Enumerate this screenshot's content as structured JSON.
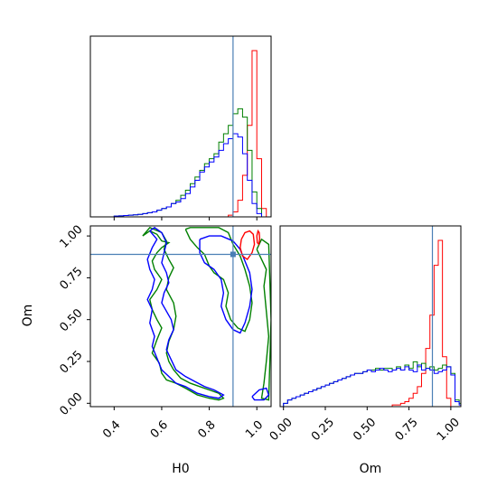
{
  "chart_data": {
    "type": "corner",
    "parameters": [
      "H0",
      "Om"
    ],
    "truths": {
      "H0": 0.9,
      "Om": 0.89
    },
    "truth_color": "#4a7fb5",
    "axes": {
      "H0": {
        "label": "H0",
        "range": [
          0.3,
          1.06
        ],
        "ticks": [
          0.4,
          0.6,
          0.8,
          1.0
        ],
        "tick_labels": [
          "0.4",
          "0.6",
          "0.8",
          "1.0"
        ]
      },
      "Om": {
        "label": "Om",
        "range": [
          -0.02,
          1.06
        ],
        "ticks": [
          0.0,
          0.25,
          0.5,
          0.75,
          1.0
        ],
        "tick_labels": [
          "0.00",
          "0.25",
          "0.50",
          "0.75",
          "1.00"
        ]
      }
    },
    "series": [
      {
        "color": "#ff0000"
      },
      {
        "color": "#008000"
      },
      {
        "color": "#0000ff"
      }
    ],
    "histograms": {
      "H0": {
        "bin_width": 0.02,
        "red": {
          "start": 0.88,
          "values": [
            0.01,
            0.03,
            0.1,
            0.25,
            0.55,
            1.0,
            0.35,
            0.05
          ]
        },
        "green": {
          "start": 0.4,
          "values": [
            0.005,
            0.006,
            0.008,
            0.01,
            0.012,
            0.015,
            0.02,
            0.025,
            0.03,
            0.04,
            0.05,
            0.06,
            0.08,
            0.1,
            0.13,
            0.16,
            0.2,
            0.24,
            0.28,
            0.32,
            0.35,
            0.38,
            0.45,
            0.5,
            0.55,
            0.62,
            0.65,
            0.6,
            0.4,
            0.15,
            0.05,
            0.0
          ]
        },
        "blue": {
          "start": 0.4,
          "values": [
            0.005,
            0.006,
            0.008,
            0.01,
            0.012,
            0.015,
            0.02,
            0.025,
            0.03,
            0.04,
            0.05,
            0.06,
            0.08,
            0.09,
            0.11,
            0.14,
            0.18,
            0.22,
            0.27,
            0.3,
            0.33,
            0.36,
            0.4,
            0.44,
            0.47,
            0.5,
            0.48,
            0.38,
            0.22,
            0.08,
            0.02,
            0.0
          ]
        }
      },
      "Om": {
        "bin_width": 0.025,
        "red": {
          "start": 0.65,
          "values": [
            0.01,
            0.01,
            0.02,
            0.03,
            0.05,
            0.08,
            0.12,
            0.2,
            0.35,
            0.55,
            0.85,
            1.0,
            0.3,
            0.05
          ]
        },
        "green": {
          "start": 0.0,
          "values": [
            0.02,
            0.04,
            0.05,
            0.06,
            0.07,
            0.08,
            0.09,
            0.1,
            0.11,
            0.12,
            0.13,
            0.14,
            0.15,
            0.16,
            0.17,
            0.18,
            0.19,
            0.2,
            0.2,
            0.21,
            0.22,
            0.22,
            0.23,
            0.22,
            0.23,
            0.23,
            0.22,
            0.24,
            0.22,
            0.25,
            0.23,
            0.27,
            0.24,
            0.26,
            0.23,
            0.24,
            0.22,
            0.23,
            0.25,
            0.24,
            0.2,
            0.04,
            0.02
          ]
        },
        "blue": {
          "start": 0.0,
          "values": [
            0.02,
            0.04,
            0.05,
            0.06,
            0.07,
            0.08,
            0.09,
            0.1,
            0.11,
            0.12,
            0.13,
            0.14,
            0.15,
            0.16,
            0.17,
            0.18,
            0.19,
            0.2,
            0.2,
            0.21,
            0.22,
            0.21,
            0.22,
            0.23,
            0.22,
            0.21,
            0.22,
            0.23,
            0.22,
            0.24,
            0.22,
            0.21,
            0.25,
            0.22,
            0.23,
            0.22,
            0.2,
            0.21,
            0.22,
            0.24,
            0.19,
            0.03,
            0.01
          ]
        }
      }
    },
    "contours": {
      "red": [
        [
          [
            0.935,
            0.98
          ],
          [
            0.95,
            1.02
          ],
          [
            0.97,
            1.03
          ],
          [
            0.985,
            1.01
          ],
          [
            0.99,
            0.95
          ],
          [
            0.98,
            0.9
          ],
          [
            0.96,
            0.86
          ],
          [
            0.94,
            0.88
          ],
          [
            0.93,
            0.93
          ],
          [
            0.935,
            0.98
          ]
        ],
        [
          [
            1.0,
            1.0
          ],
          [
            1.005,
            1.03
          ],
          [
            1.01,
            1.02
          ],
          [
            1.012,
            0.98
          ],
          [
            1.008,
            0.95
          ],
          [
            1.002,
            0.96
          ],
          [
            1.0,
            1.0
          ]
        ]
      ],
      "green": [
        [
          [
            0.52,
            1.0
          ],
          [
            0.55,
            1.03
          ],
          [
            0.58,
            1.01
          ],
          [
            0.6,
            0.97
          ],
          [
            0.63,
            0.96
          ],
          [
            0.6,
            0.93
          ],
          [
            0.58,
            0.9
          ],
          [
            0.56,
            0.85
          ],
          [
            0.57,
            0.8
          ],
          [
            0.6,
            0.74
          ],
          [
            0.58,
            0.68
          ],
          [
            0.55,
            0.62
          ],
          [
            0.56,
            0.56
          ],
          [
            0.58,
            0.5
          ],
          [
            0.6,
            0.45
          ],
          [
            0.58,
            0.38
          ],
          [
            0.56,
            0.3
          ],
          [
            0.59,
            0.24
          ],
          [
            0.6,
            0.18
          ],
          [
            0.62,
            0.14
          ],
          [
            0.66,
            0.12
          ],
          [
            0.7,
            0.09
          ],
          [
            0.75,
            0.05
          ],
          [
            0.8,
            0.03
          ],
          [
            0.84,
            0.02
          ],
          [
            0.86,
            0.03
          ],
          [
            0.84,
            0.06
          ],
          [
            0.8,
            0.08
          ],
          [
            0.76,
            0.1
          ],
          [
            0.72,
            0.12
          ],
          [
            0.68,
            0.15
          ],
          [
            0.65,
            0.2
          ],
          [
            0.63,
            0.25
          ],
          [
            0.62,
            0.3
          ],
          [
            0.63,
            0.37
          ],
          [
            0.65,
            0.44
          ],
          [
            0.66,
            0.52
          ],
          [
            0.65,
            0.6
          ],
          [
            0.62,
            0.68
          ],
          [
            0.63,
            0.75
          ],
          [
            0.65,
            0.81
          ],
          [
            0.63,
            0.86
          ],
          [
            0.61,
            0.92
          ],
          [
            0.62,
            0.97
          ],
          [
            0.6,
            1.02
          ],
          [
            0.55,
            1.05
          ],
          [
            0.52,
            1.0
          ]
        ],
        [
          [
            0.7,
            1.04
          ],
          [
            0.72,
            0.98
          ],
          [
            0.75,
            0.93
          ],
          [
            0.78,
            0.89
          ],
          [
            0.8,
            0.82
          ],
          [
            0.82,
            0.78
          ],
          [
            0.86,
            0.74
          ],
          [
            0.88,
            0.66
          ],
          [
            0.87,
            0.58
          ],
          [
            0.89,
            0.5
          ],
          [
            0.92,
            0.45
          ],
          [
            0.95,
            0.43
          ],
          [
            0.97,
            0.5
          ],
          [
            0.98,
            0.6
          ],
          [
            0.97,
            0.7
          ],
          [
            0.95,
            0.8
          ],
          [
            0.93,
            0.88
          ],
          [
            0.9,
            0.95
          ],
          [
            0.88,
            1.02
          ],
          [
            0.84,
            1.05
          ],
          [
            0.78,
            1.05
          ],
          [
            0.72,
            1.05
          ],
          [
            0.7,
            1.04
          ]
        ],
        [
          [
            1.0,
            0.92
          ],
          [
            1.02,
            0.86
          ],
          [
            1.04,
            0.8
          ],
          [
            1.03,
            0.7
          ],
          [
            1.04,
            0.55
          ],
          [
            1.05,
            0.4
          ],
          [
            1.04,
            0.25
          ],
          [
            1.03,
            0.12
          ],
          [
            1.02,
            0.03
          ],
          [
            1.05,
            0.02
          ],
          [
            1.06,
            0.5
          ],
          [
            1.05,
            0.95
          ],
          [
            1.02,
            0.98
          ],
          [
            1.0,
            0.92
          ]
        ]
      ],
      "blue": [
        [
          [
            0.55,
            1.03
          ],
          [
            0.58,
            0.98
          ],
          [
            0.56,
            0.93
          ],
          [
            0.54,
            0.86
          ],
          [
            0.55,
            0.8
          ],
          [
            0.57,
            0.74
          ],
          [
            0.56,
            0.68
          ],
          [
            0.54,
            0.62
          ],
          [
            0.56,
            0.56
          ],
          [
            0.55,
            0.48
          ],
          [
            0.57,
            0.4
          ],
          [
            0.56,
            0.34
          ],
          [
            0.58,
            0.27
          ],
          [
            0.6,
            0.2
          ],
          [
            0.63,
            0.16
          ],
          [
            0.66,
            0.12
          ],
          [
            0.7,
            0.1
          ],
          [
            0.75,
            0.06
          ],
          [
            0.8,
            0.04
          ],
          [
            0.84,
            0.03
          ],
          [
            0.86,
            0.05
          ],
          [
            0.82,
            0.08
          ],
          [
            0.78,
            0.1
          ],
          [
            0.74,
            0.13
          ],
          [
            0.7,
            0.16
          ],
          [
            0.66,
            0.2
          ],
          [
            0.64,
            0.26
          ],
          [
            0.62,
            0.32
          ],
          [
            0.63,
            0.38
          ],
          [
            0.65,
            0.44
          ],
          [
            0.64,
            0.5
          ],
          [
            0.62,
            0.55
          ],
          [
            0.6,
            0.6
          ],
          [
            0.61,
            0.66
          ],
          [
            0.63,
            0.72
          ],
          [
            0.62,
            0.78
          ],
          [
            0.6,
            0.84
          ],
          [
            0.61,
            0.9
          ],
          [
            0.62,
            0.96
          ],
          [
            0.6,
            1.02
          ],
          [
            0.57,
            1.05
          ],
          [
            0.55,
            1.03
          ]
        ],
        [
          [
            0.76,
            0.98
          ],
          [
            0.8,
            1.0
          ],
          [
            0.85,
            1.0
          ],
          [
            0.9,
            0.97
          ],
          [
            0.93,
            0.92
          ],
          [
            0.95,
            0.85
          ],
          [
            0.97,
            0.78
          ],
          [
            0.98,
            0.68
          ],
          [
            0.97,
            0.58
          ],
          [
            0.95,
            0.48
          ],
          [
            0.93,
            0.42
          ],
          [
            0.9,
            0.44
          ],
          [
            0.87,
            0.5
          ],
          [
            0.85,
            0.58
          ],
          [
            0.86,
            0.66
          ],
          [
            0.85,
            0.74
          ],
          [
            0.82,
            0.8
          ],
          [
            0.78,
            0.84
          ],
          [
            0.76,
            0.9
          ],
          [
            0.76,
            0.98
          ]
        ],
        [
          [
            0.98,
            0.04
          ],
          [
            1.01,
            0.08
          ],
          [
            1.04,
            0.09
          ],
          [
            1.05,
            0.05
          ],
          [
            1.03,
            0.02
          ],
          [
            0.99,
            0.02
          ],
          [
            0.98,
            0.04
          ]
        ]
      ]
    }
  }
}
